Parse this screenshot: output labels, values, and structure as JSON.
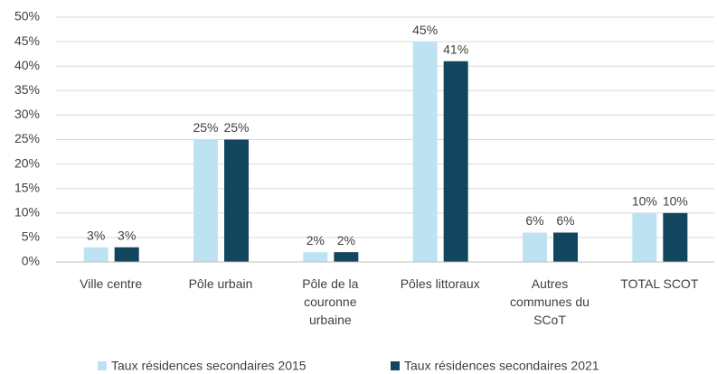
{
  "chart_data": {
    "type": "bar",
    "categories": [
      "Ville centre",
      "Pôle urbain",
      "Pôle de la couronne urbaine",
      "Pôles littoraux",
      "Autres communes du SCoT",
      "TOTAL SCOT"
    ],
    "series": [
      {
        "name": "Taux résidences secondaires 2015",
        "color": "#bde3f3",
        "values": [
          3,
          25,
          2,
          45,
          6,
          10
        ],
        "value_labels": [
          "3%",
          "25%",
          "2%",
          "45%",
          "6%",
          "10%"
        ]
      },
      {
        "name": "Taux résidences secondaires 2021",
        "color": "#12455e",
        "values": [
          3,
          25,
          2,
          41,
          6,
          10
        ],
        "value_labels": [
          "3%",
          "25%",
          "2%",
          "41%",
          "6%",
          "10%"
        ]
      }
    ],
    "ylim": [
      0,
      50
    ],
    "yticks": [
      {
        "value": 0,
        "label": "0%"
      },
      {
        "value": 5,
        "label": "5%"
      },
      {
        "value": 10,
        "label": "10%"
      },
      {
        "value": 15,
        "label": "15%"
      },
      {
        "value": 20,
        "label": "20%"
      },
      {
        "value": 25,
        "label": "25%"
      },
      {
        "value": 30,
        "label": "30%"
      },
      {
        "value": 35,
        "label": "35%"
      },
      {
        "value": 40,
        "label": "40%"
      },
      {
        "value": 45,
        "label": "45%"
      },
      {
        "value": 50,
        "label": "50%"
      }
    ],
    "grid": true,
    "legend": "bottom"
  }
}
